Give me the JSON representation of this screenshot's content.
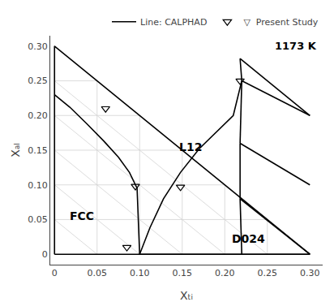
{
  "chart_data": {
    "type": "scatter",
    "xlabel": "Xₜᵢ",
    "ylabel": "Xₐₗ",
    "xlim": [
      -0.005,
      0.315
    ],
    "ylim": [
      -0.015,
      0.315
    ],
    "xticks": [
      0,
      0.05,
      {
        "value": 0.1,
        "label": "0.10"
      },
      0.15,
      {
        "value": 0.2,
        "label": "0.20"
      },
      0.25,
      {
        "value": 0.3,
        "label": "0.30"
      }
    ],
    "yticks": [
      0,
      0.05,
      {
        "value": 0.1,
        "label": "0.10"
      },
      0.15,
      {
        "value": 0.2,
        "label": "0.20"
      },
      0.25,
      {
        "value": 0.3,
        "label": "0.30"
      }
    ],
    "grid": false,
    "legend": "upper right",
    "series": [
      {
        "type": "line",
        "color": "#aaaaaa",
        "x": [
          0.05,
          0.05,
          null,
          0.1,
          0.1,
          null,
          0.15,
          0.15,
          null,
          0.2,
          0.2,
          null,
          0.25,
          0.25,
          null,
          0,
          0.25,
          null,
          0,
          0.2,
          null,
          0,
          0.15,
          null,
          0,
          0.1,
          null,
          0,
          0.05,
          null,
          0.05,
          0,
          null,
          0.1,
          0,
          null,
          0.15,
          0,
          null,
          0.2,
          0,
          null,
          0.25,
          0
        ],
        "values": [
          0,
          0.25,
          null,
          0,
          0.2,
          null,
          0,
          0.15,
          null,
          0,
          0.1,
          null,
          0,
          0.05,
          null,
          0.05,
          0.05,
          null,
          0.1,
          0.1,
          null,
          0.15,
          0.15,
          null,
          0.2,
          0.2,
          null,
          0.25,
          0.25,
          null,
          0,
          0.05,
          null,
          0,
          0.1,
          null,
          0,
          0.15,
          null,
          0,
          0.2,
          null,
          0,
          0.25
        ]
      },
      {
        "type": "line",
        "color": "#000000",
        "x": [
          0,
          0.3,
          0,
          0
        ],
        "values": [
          0,
          0,
          0.3,
          0
        ]
      },
      {
        "name": "Line: CALPHAD",
        "type": "line",
        "color": "#000000",
        "x": [
          0.0,
          0.018,
          0.038,
          0.058,
          0.075,
          0.088,
          0.097,
          0.1,
          null,
          0.1,
          0.112,
          0.128,
          0.148,
          0.17,
          0.193,
          0.21,
          0.22,
          0.218,
          null,
          0.218,
          0.23,
          0.245,
          0.262,
          0.278,
          0.295,
          0.3,
          null,
          0.1,
          0.22,
          null,
          0.22,
          0.3,
          null,
          0.22,
          0.218,
          null,
          0.218,
          0.3,
          null,
          0.218,
          0.218,
          null,
          0.218,
          0.3,
          null,
          0.218,
          0.22,
          null,
          0.22,
          0.3
        ],
        "values": [
          0.23,
          0.212,
          0.188,
          0.163,
          0.14,
          0.118,
          0.095,
          0.0,
          null,
          0.0,
          0.038,
          0.08,
          0.118,
          0.152,
          0.18,
          0.2,
          0.25,
          0.282,
          null,
          0.282,
          0.27,
          0.255,
          0.238,
          0.222,
          0.205,
          0.2,
          null,
          0.0,
          0.0,
          null,
          0.0,
          0.0,
          null,
          0.0,
          0.08,
          null,
          0.08,
          0.0,
          null,
          0.08,
          0.16,
          null,
          0.16,
          0.1,
          null,
          0.16,
          0.25,
          null,
          0.25,
          0.2
        ]
      },
      {
        "name": "▽  Present Study",
        "type": "scatter",
        "color": "#000000",
        "marker": "triangle-down-open",
        "x": [
          0.085,
          0.095,
          0.06,
          0.148,
          0.218
        ],
        "values": [
          0.01,
          0.098,
          0.21,
          0.097,
          0.25
        ]
      }
    ],
    "annotations": [
      {
        "text": "FCC",
        "x": 0.032,
        "y": 0.055
      },
      {
        "text": "L12",
        "x": 0.16,
        "y": 0.155
      },
      {
        "text": "D024",
        "x": 0.228,
        "y": 0.022
      },
      {
        "text": "1173 K"
      }
    ]
  }
}
